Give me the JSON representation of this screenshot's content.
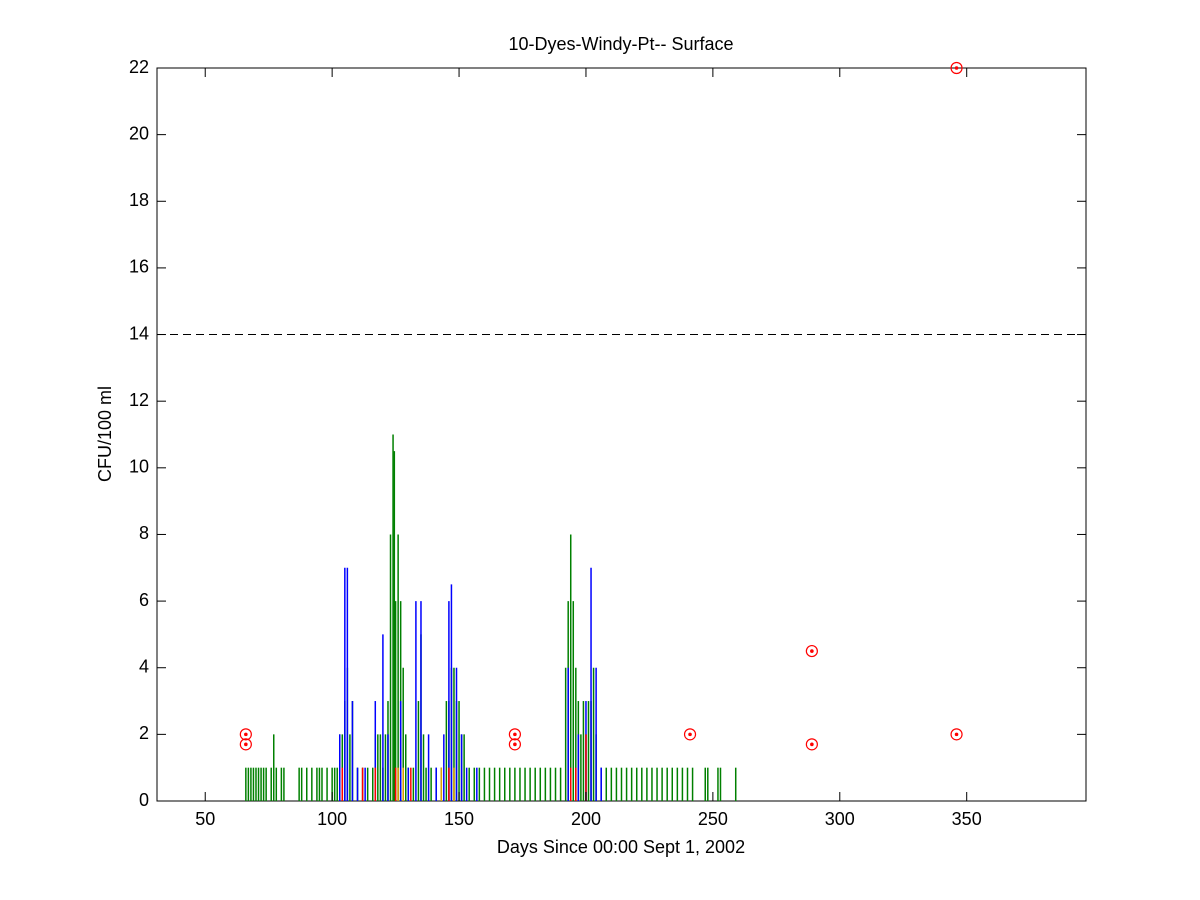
{
  "chart_data": {
    "type": "stem",
    "title": "10-Dyes-Windy-Pt-- Surface",
    "xlabel": "Days Since 00:00 Sept 1, 2002",
    "ylabel": "CFU/100 ml",
    "xlim": [
      31,
      397
    ],
    "ylim": [
      0,
      22
    ],
    "xticks": [
      50,
      100,
      150,
      200,
      250,
      300,
      350
    ],
    "yticks": [
      0,
      2,
      4,
      6,
      8,
      10,
      12,
      14,
      16,
      18,
      20,
      22
    ],
    "reference_line": 14,
    "series": [
      {
        "color": "#008000",
        "x": [
          66,
          67,
          68,
          69,
          70,
          71,
          72,
          73,
          74,
          76,
          77,
          78,
          80,
          81,
          87,
          88,
          90,
          92,
          94,
          95,
          96,
          98,
          100,
          101,
          102,
          103,
          104,
          105,
          106,
          107,
          108,
          110,
          112,
          114,
          116,
          117,
          118,
          119,
          120,
          121,
          122,
          123,
          124,
          124.5,
          125,
          126,
          127,
          128,
          129,
          130,
          132,
          134,
          135,
          136,
          137,
          139,
          141,
          143,
          145,
          146,
          147,
          148,
          149,
          150,
          151,
          152,
          154,
          156,
          158,
          160,
          162,
          164,
          166,
          168,
          170,
          172,
          174,
          176,
          178,
          180,
          182,
          184,
          186,
          188,
          190,
          192,
          193,
          194,
          195,
          196,
          197,
          198,
          199,
          200,
          201,
          202,
          203,
          204,
          206,
          208,
          210,
          212,
          214,
          216,
          218,
          220,
          222,
          224,
          226,
          228,
          230,
          232,
          234,
          236,
          238,
          240,
          242,
          247,
          248,
          252,
          253,
          259
        ],
        "values": [
          1,
          1,
          1,
          1,
          1,
          1,
          1,
          1,
          1,
          1,
          2,
          1,
          1,
          1,
          1,
          1,
          1,
          1,
          1,
          1,
          1,
          1,
          1,
          1,
          1,
          2,
          2,
          3,
          4,
          2,
          3,
          1,
          1,
          1,
          1,
          2,
          2,
          2,
          1,
          2,
          3,
          8,
          11,
          10.5,
          6,
          8,
          6,
          4,
          2,
          1,
          1,
          3,
          5,
          2,
          1,
          1,
          1,
          1,
          3,
          3,
          4,
          4,
          3,
          3,
          2,
          2,
          1,
          1,
          1,
          1,
          1,
          1,
          1,
          1,
          1,
          1,
          1,
          1,
          1,
          1,
          1,
          1,
          1,
          1,
          1,
          4,
          6,
          8,
          6,
          4,
          3,
          2,
          3,
          2,
          3,
          3,
          4,
          2,
          1,
          1,
          1,
          1,
          1,
          1,
          1,
          1,
          1,
          1,
          1,
          1,
          1,
          1,
          1,
          1,
          1,
          1,
          1,
          1,
          1,
          1,
          1,
          1
        ]
      },
      {
        "color": "#0000ff",
        "x": [
          103,
          105,
          106,
          108,
          110,
          113,
          117,
          120,
          122,
          127,
          130,
          133,
          135,
          138,
          141,
          144,
          146,
          147,
          149,
          151,
          153,
          157,
          193,
          197,
          200,
          202,
          204,
          206
        ],
        "values": [
          2,
          7,
          7,
          3,
          1,
          1,
          3,
          5,
          2,
          3,
          1,
          6,
          6,
          2,
          1,
          2,
          6,
          6.5,
          4,
          2,
          1,
          1,
          4,
          2,
          3,
          7,
          4,
          1
        ]
      },
      {
        "color": "#ff0000",
        "x": [
          104,
          112,
          117,
          125,
          131,
          146,
          194,
          196,
          200
        ],
        "values": [
          1,
          1,
          1,
          1,
          1,
          1,
          1,
          1,
          2
        ]
      },
      {
        "color": "#e0a000",
        "x": [
          126,
          128,
          143,
          148
        ],
        "values": [
          1,
          1,
          1,
          1
        ]
      }
    ],
    "samples": {
      "color": "#ff0000",
      "x": [
        66,
        66,
        172,
        172,
        241,
        289,
        289,
        346,
        346
      ],
      "values": [
        2,
        1.7,
        2,
        1.7,
        2,
        4.5,
        1.7,
        22,
        2
      ]
    }
  }
}
